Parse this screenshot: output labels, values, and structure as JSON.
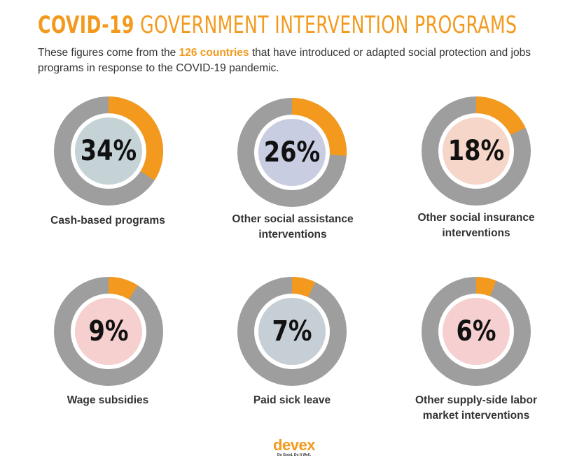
{
  "header": {
    "title_bold": "COVID-19",
    "title_rest": "GOVERNMENT INTERVENTION PROGRAMS",
    "subtitle_before": "These figures come from the ",
    "subtitle_highlight": "126 countries",
    "subtitle_after": " that have introduced or adapted social protection and jobs programs in response to the COVID-19 pandemic."
  },
  "colors": {
    "accent": "#f39a1e",
    "ring": "#9e9e9e",
    "text": "#333333"
  },
  "chart_data": {
    "type": "pie",
    "title": "COVID-19 GOVERNMENT INTERVENTION PROGRAMS",
    "unit": "%",
    "items": [
      {
        "label": "Cash-based programs",
        "value": 34,
        "display": "34%",
        "icon": "cash-check-icon",
        "icon_bg": "#c5d3d6"
      },
      {
        "label": "Other social assistance interventions",
        "value": 26,
        "display": "26%",
        "icon": "wallet-icon",
        "icon_bg": "#c9cde2"
      },
      {
        "label": "Other social insurance interventions",
        "value": 18,
        "display": "18%",
        "icon": "umbrella-icon",
        "icon_bg": "#f5d6c8"
      },
      {
        "label": "Wage subsidies",
        "value": 9,
        "display": "9%",
        "icon": "handshake-icon",
        "icon_bg": "#f6cfcf"
      },
      {
        "label": "Paid sick leave",
        "value": 7,
        "display": "7%",
        "icon": "sick-person-icon",
        "icon_bg": "#c7cfd6"
      },
      {
        "label": "Other supply-side labor market interventions",
        "value": 6,
        "display": "6%",
        "icon": "money-hand-icon",
        "icon_bg": "#f6d0d0"
      }
    ]
  },
  "footer": {
    "logo_text": "devex",
    "logo_tagline": "Do Good. Do It Well."
  }
}
